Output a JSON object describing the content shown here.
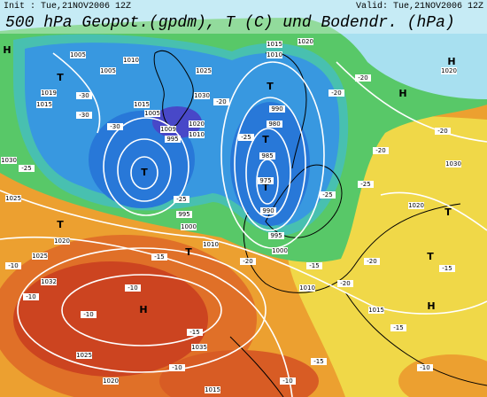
{
  "header": {
    "init": "Init : Tue,21NOV2006 12Z",
    "valid": "Valid: Tue,21NOV2006 12Z",
    "title": "500 hPa Geopot.(gpdm), T (C) und Bodendr. (hPa)"
  },
  "map": {
    "pressure_centers": [
      "H",
      "H",
      "H",
      "H",
      "H",
      "T",
      "T",
      "T",
      "T",
      "T",
      "T",
      "T",
      "T",
      "T"
    ],
    "isobar_labels": [
      "1005",
      "1005",
      "1010",
      "1015",
      "1019",
      "1025",
      "1030",
      "1015",
      "1005",
      "1020",
      "1010",
      "1009",
      "995",
      "1015",
      "1010",
      "1020",
      "990",
      "980",
      "985",
      "975",
      "990",
      "995",
      "1000",
      "1000",
      "995",
      "1010",
      "1010",
      "1015",
      "1020",
      "1020",
      "1030",
      "1030",
      "1025",
      "1020",
      "1025",
      "1032",
      "1035",
      "1025",
      "1020",
      "1015"
    ],
    "temperature_labels": [
      "-30",
      "-30",
      "-30",
      "-25",
      "-25",
      "-25",
      "-25",
      "-25",
      "-20",
      "-20",
      "-20",
      "-20",
      "-20",
      "-20",
      "-20",
      "-20",
      "-15",
      "-15",
      "-15",
      "-15",
      "-15",
      "-15",
      "-10",
      "-10",
      "-10",
      "-10",
      "-10",
      "-10",
      "-10"
    ]
  }
}
